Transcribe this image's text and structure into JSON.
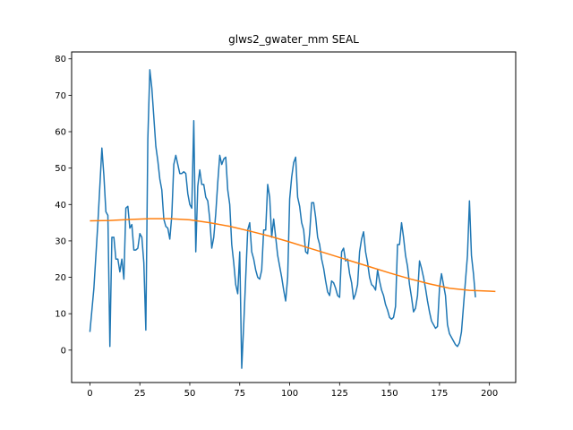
{
  "chart_data": {
    "type": "line",
    "title": "glws2_gwater_mm SEAL",
    "xlabel": "",
    "ylabel": "",
    "xlim": [
      -9.15,
      213.15
    ],
    "ylim": [
      -8.9,
      81.9
    ],
    "grid": false,
    "legend": "none",
    "x_ticks": [
      0,
      25,
      50,
      75,
      100,
      125,
      150,
      175,
      200
    ],
    "y_ticks": [
      0,
      10,
      20,
      30,
      40,
      50,
      60,
      70,
      80
    ],
    "series": [
      {
        "color": "#1f77b4",
        "points": [
          [
            0,
            5
          ],
          [
            2,
            17
          ],
          [
            4,
            35
          ],
          [
            6,
            55.5
          ],
          [
            7,
            48
          ],
          [
            8,
            38
          ],
          [
            9,
            37
          ],
          [
            10,
            1
          ],
          [
            11,
            31
          ],
          [
            12,
            31
          ],
          [
            13,
            25
          ],
          [
            14,
            25
          ],
          [
            15,
            21.5
          ],
          [
            16,
            25
          ],
          [
            17,
            19.5
          ],
          [
            18,
            39
          ],
          [
            19,
            39.5
          ],
          [
            20,
            33.5
          ],
          [
            21,
            34.5
          ],
          [
            22,
            27.5
          ],
          [
            23,
            27.5
          ],
          [
            24,
            28
          ],
          [
            25,
            32
          ],
          [
            26,
            31
          ],
          [
            27,
            24
          ],
          [
            28,
            5.5
          ],
          [
            29,
            58
          ],
          [
            30,
            77
          ],
          [
            31,
            72
          ],
          [
            32,
            64
          ],
          [
            33,
            56
          ],
          [
            34,
            52
          ],
          [
            35,
            47
          ],
          [
            36,
            44
          ],
          [
            37,
            36
          ],
          [
            38,
            34
          ],
          [
            39,
            33.5
          ],
          [
            40,
            30.5
          ],
          [
            41,
            37
          ],
          [
            42,
            51
          ],
          [
            43,
            53.5
          ],
          [
            44,
            51
          ],
          [
            45,
            48.5
          ],
          [
            46,
            48.5
          ],
          [
            47,
            49
          ],
          [
            48,
            48.5
          ],
          [
            49,
            43
          ],
          [
            50,
            40
          ],
          [
            51,
            39
          ],
          [
            52,
            63
          ],
          [
            53,
            27
          ],
          [
            54,
            45
          ],
          [
            55,
            49.5
          ],
          [
            56,
            45.5
          ],
          [
            57,
            45.5
          ],
          [
            58,
            42
          ],
          [
            59,
            41
          ],
          [
            60,
            36
          ],
          [
            61,
            28
          ],
          [
            62,
            31
          ],
          [
            63,
            37.5
          ],
          [
            64,
            46
          ],
          [
            65,
            53.5
          ],
          [
            66,
            51
          ],
          [
            67,
            52.5
          ],
          [
            68,
            53
          ],
          [
            69,
            44
          ],
          [
            70,
            40
          ],
          [
            71,
            29
          ],
          [
            72,
            24
          ],
          [
            73,
            18
          ],
          [
            74,
            15.5
          ],
          [
            75,
            27
          ],
          [
            76,
            -5
          ],
          [
            77,
            7
          ],
          [
            78,
            20
          ],
          [
            79,
            33
          ],
          [
            80,
            35
          ],
          [
            81,
            27
          ],
          [
            82,
            25
          ],
          [
            83,
            22
          ],
          [
            84,
            20
          ],
          [
            85,
            19.5
          ],
          [
            86,
            22
          ],
          [
            87,
            33
          ],
          [
            88,
            33
          ],
          [
            89,
            45.5
          ],
          [
            90,
            42
          ],
          [
            91,
            31
          ],
          [
            92,
            36
          ],
          [
            93,
            31
          ],
          [
            94,
            26
          ],
          [
            95,
            23
          ],
          [
            96,
            20
          ],
          [
            97,
            16.5
          ],
          [
            98,
            13.5
          ],
          [
            99,
            20
          ],
          [
            100,
            41.5
          ],
          [
            101,
            47.5
          ],
          [
            102,
            51.5
          ],
          [
            103,
            53
          ],
          [
            104,
            42
          ],
          [
            105,
            39.5
          ],
          [
            106,
            35
          ],
          [
            107,
            33
          ],
          [
            108,
            27
          ],
          [
            109,
            26.5
          ],
          [
            110,
            32
          ],
          [
            111,
            40.5
          ],
          [
            112,
            40.5
          ],
          [
            113,
            36.5
          ],
          [
            114,
            31
          ],
          [
            115,
            29
          ],
          [
            116,
            25
          ],
          [
            117,
            22.5
          ],
          [
            118,
            19
          ],
          [
            119,
            16
          ],
          [
            120,
            15
          ],
          [
            121,
            19
          ],
          [
            122,
            18.5
          ],
          [
            123,
            17
          ],
          [
            124,
            15
          ],
          [
            125,
            14.5
          ],
          [
            126,
            27
          ],
          [
            127,
            28
          ],
          [
            128,
            24.5
          ],
          [
            129,
            25
          ],
          [
            130,
            21
          ],
          [
            131,
            18.5
          ],
          [
            132,
            14
          ],
          [
            133,
            15.5
          ],
          [
            134,
            18
          ],
          [
            135,
            27
          ],
          [
            136,
            30.5
          ],
          [
            137,
            32.5
          ],
          [
            138,
            27
          ],
          [
            139,
            24
          ],
          [
            140,
            20
          ],
          [
            141,
            18
          ],
          [
            142,
            17.5
          ],
          [
            143,
            16.5
          ],
          [
            144,
            22
          ],
          [
            145,
            19
          ],
          [
            146,
            16.5
          ],
          [
            147,
            15
          ],
          [
            148,
            12.5
          ],
          [
            149,
            11
          ],
          [
            150,
            9
          ],
          [
            151,
            8.5
          ],
          [
            152,
            9
          ],
          [
            153,
            12
          ],
          [
            154,
            29
          ],
          [
            155,
            29
          ],
          [
            156,
            35
          ],
          [
            157,
            31
          ],
          [
            158,
            26
          ],
          [
            159,
            23
          ],
          [
            160,
            18
          ],
          [
            161,
            14.5
          ],
          [
            162,
            10.5
          ],
          [
            163,
            11.5
          ],
          [
            164,
            15
          ],
          [
            165,
            24.5
          ],
          [
            166,
            22.5
          ],
          [
            167,
            20
          ],
          [
            168,
            17
          ],
          [
            169,
            13.5
          ],
          [
            170,
            10.5
          ],
          [
            171,
            8
          ],
          [
            172,
            7
          ],
          [
            173,
            6
          ],
          [
            174,
            6.5
          ],
          [
            175,
            17
          ],
          [
            176,
            21
          ],
          [
            177,
            18
          ],
          [
            178,
            15
          ],
          [
            179,
            7
          ],
          [
            180,
            4.5
          ],
          [
            181,
            3.5
          ],
          [
            182,
            2.5
          ],
          [
            183,
            1.5
          ],
          [
            184,
            1
          ],
          [
            185,
            2
          ],
          [
            186,
            5
          ],
          [
            187,
            12
          ],
          [
            188,
            19
          ],
          [
            189,
            26
          ],
          [
            190,
            41
          ],
          [
            191,
            26
          ],
          [
            192,
            21
          ],
          [
            193,
            14.5
          ]
        ]
      },
      {
        "color": "#ff7f0e",
        "points": [
          [
            0,
            35.5
          ],
          [
            10,
            35.6
          ],
          [
            20,
            35.9
          ],
          [
            30,
            36.1
          ],
          [
            40,
            36.1
          ],
          [
            50,
            35.8
          ],
          [
            60,
            35.0
          ],
          [
            70,
            34.0
          ],
          [
            80,
            32.7
          ],
          [
            90,
            31.3
          ],
          [
            100,
            29.7
          ],
          [
            110,
            28.0
          ],
          [
            120,
            26.3
          ],
          [
            130,
            24.6
          ],
          [
            140,
            22.9
          ],
          [
            150,
            21.2
          ],
          [
            160,
            19.6
          ],
          [
            170,
            18.2
          ],
          [
            180,
            17.0
          ],
          [
            190,
            16.4
          ],
          [
            200,
            16.2
          ],
          [
            203,
            16.1
          ]
        ]
      }
    ]
  }
}
